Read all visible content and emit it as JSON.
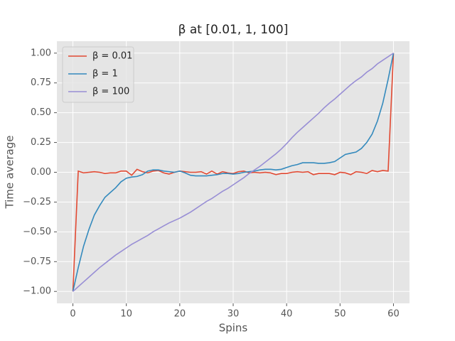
{
  "chart_data": {
    "type": "line",
    "title": "β at [0.01, 1, 100]",
    "xlabel": "Spins",
    "ylabel": "Time average",
    "x": [
      0,
      1,
      2,
      3,
      4,
      5,
      6,
      7,
      8,
      9,
      10,
      11,
      12,
      13,
      14,
      15,
      16,
      17,
      18,
      19,
      20,
      21,
      22,
      23,
      24,
      25,
      26,
      27,
      28,
      29,
      30,
      31,
      32,
      33,
      34,
      35,
      36,
      37,
      38,
      39,
      40,
      41,
      42,
      43,
      44,
      45,
      46,
      47,
      48,
      49,
      50,
      51,
      52,
      53,
      54,
      55,
      56,
      57,
      58,
      59,
      60
    ],
    "series": [
      {
        "name": "β = 0.01",
        "color": "#E24A33",
        "values": [
          -1,
          0.01,
          -0.005,
          0.0,
          0.005,
          0.0,
          -0.01,
          -0.005,
          -0.005,
          0.01,
          0.01,
          -0.025,
          0.025,
          0.005,
          -0.005,
          0.01,
          0.015,
          -0.005,
          -0.015,
          0.0,
          0.01,
          0.005,
          0.0,
          0.0,
          0.005,
          -0.015,
          0.01,
          -0.015,
          0.005,
          -0.005,
          -0.01,
          0.005,
          0.01,
          -0.005,
          0.0,
          -0.005,
          0.0,
          -0.005,
          -0.02,
          -0.01,
          -0.01,
          0.0,
          0.005,
          0.0,
          0.005,
          -0.02,
          -0.01,
          -0.01,
          -0.01,
          -0.02,
          0.0,
          -0.005,
          -0.02,
          0.005,
          0.0,
          -0.01,
          0.015,
          0.005,
          0.015,
          0.01,
          1.0
        ]
      },
      {
        "name": "β = 1",
        "color": "#348ABD",
        "values": [
          -1,
          -0.8,
          -0.62,
          -0.48,
          -0.36,
          -0.28,
          -0.21,
          -0.17,
          -0.13,
          -0.08,
          -0.05,
          -0.04,
          -0.035,
          -0.02,
          0.01,
          0.02,
          0.02,
          0.01,
          0.005,
          0.0,
          0.01,
          -0.005,
          -0.025,
          -0.03,
          -0.03,
          -0.03,
          -0.025,
          -0.02,
          -0.01,
          -0.01,
          -0.015,
          -0.01,
          0.0,
          0.005,
          0.01,
          0.02,
          0.025,
          0.025,
          0.02,
          0.025,
          0.04,
          0.055,
          0.065,
          0.08,
          0.08,
          0.08,
          0.075,
          0.075,
          0.08,
          0.09,
          0.12,
          0.15,
          0.16,
          0.17,
          0.2,
          0.25,
          0.32,
          0.43,
          0.58,
          0.78,
          1.0
        ]
      },
      {
        "name": "β = 100",
        "color": "#988ED5",
        "values": [
          -1,
          -0.96,
          -0.92,
          -0.88,
          -0.84,
          -0.8,
          -0.765,
          -0.73,
          -0.695,
          -0.665,
          -0.635,
          -0.605,
          -0.58,
          -0.555,
          -0.53,
          -0.5,
          -0.475,
          -0.45,
          -0.425,
          -0.405,
          -0.385,
          -0.36,
          -0.335,
          -0.305,
          -0.275,
          -0.245,
          -0.22,
          -0.19,
          -0.16,
          -0.135,
          -0.105,
          -0.075,
          -0.045,
          -0.01,
          0.02,
          0.05,
          0.085,
          0.12,
          0.155,
          0.195,
          0.24,
          0.29,
          0.335,
          0.375,
          0.415,
          0.455,
          0.495,
          0.54,
          0.58,
          0.615,
          0.655,
          0.695,
          0.735,
          0.77,
          0.8,
          0.84,
          0.87,
          0.91,
          0.94,
          0.97,
          1.0
        ]
      }
    ],
    "xlim": [
      -3,
      63
    ],
    "ylim": [
      -1.1,
      1.1
    ],
    "xticks": [
      0,
      10,
      20,
      30,
      40,
      50,
      60
    ],
    "yticks": [
      {
        "value": -1,
        "label": "−1.00"
      },
      {
        "value": -0.75,
        "label": "−0.75"
      },
      {
        "value": -0.5,
        "label": "−0.50"
      },
      {
        "value": -0.25,
        "label": "−0.25"
      },
      {
        "value": 0,
        "label": "0.00"
      },
      {
        "value": 0.25,
        "label": "0.25"
      },
      {
        "value": 0.5,
        "label": "0.50"
      },
      {
        "value": 0.75,
        "label": "0.75"
      },
      {
        "value": 1,
        "label": "1.00"
      }
    ],
    "grid": true,
    "legend": "upper left"
  }
}
